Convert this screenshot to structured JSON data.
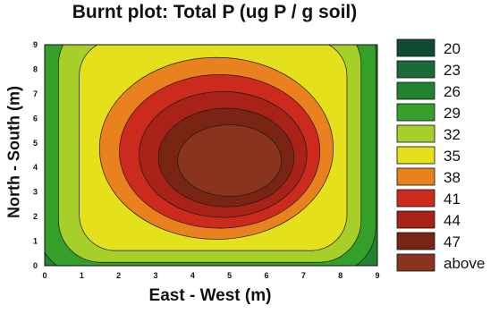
{
  "chart_data": {
    "type": "heatmap",
    "title": "Burnt plot: Total P (ug P / g  soil)",
    "xlabel": "East - West (m)",
    "ylabel": "North - South (m)",
    "x_ticks": [
      "0",
      "1",
      "2",
      "3",
      "4",
      "5",
      "6",
      "7",
      "8",
      "9"
    ],
    "y_ticks": [
      "0",
      "1",
      "2",
      "3",
      "4",
      "5",
      "6",
      "7",
      "8",
      "9"
    ],
    "xlim": [
      0,
      9
    ],
    "ylim": [
      0,
      9
    ],
    "peak": {
      "x": 5,
      "y": 4.5
    },
    "levels": [
      {
        "label": "20",
        "color": "#0f4a32",
        "value": 20
      },
      {
        "label": "23",
        "color": "#1b6b3a",
        "value": 23
      },
      {
        "label": "26",
        "color": "#22822f",
        "value": 26
      },
      {
        "label": "29",
        "color": "#34a02a",
        "value": 29
      },
      {
        "label": "32",
        "color": "#a6cf2a",
        "value": 32
      },
      {
        "label": "35",
        "color": "#e4e01c",
        "value": 35
      },
      {
        "label": "38",
        "color": "#e9821e",
        "value": 38
      },
      {
        "label": "41",
        "color": "#cc2a1c",
        "value": 41
      },
      {
        "label": "44",
        "color": "#a82218",
        "value": 44
      },
      {
        "label": "47",
        "color": "#7a2414",
        "value": 47
      },
      {
        "label": "above",
        "color": "#8a3420",
        "value": 50
      }
    ]
  }
}
